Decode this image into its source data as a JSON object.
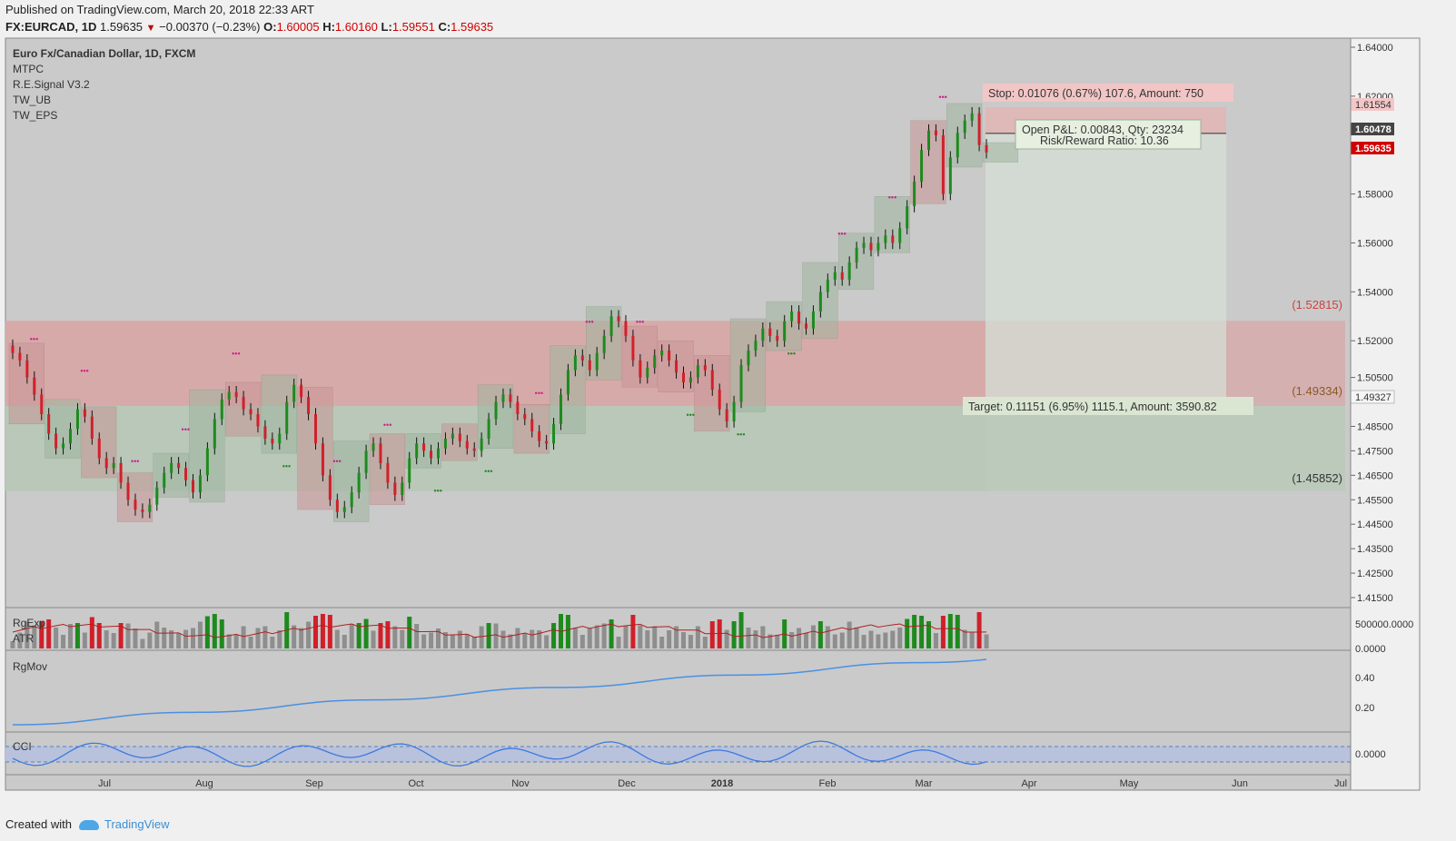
{
  "header": {
    "published": "Published on TradingView.com, March 20, 2018 22:33 ART",
    "symbol": "FX:EURCAD, 1D",
    "last": "1.59635",
    "change": "−0.00370 (−0.23%)",
    "open_label": "O:",
    "open": "1.60005",
    "high_label": "H:",
    "high": "1.60160",
    "low_label": "L:",
    "low": "1.59551",
    "close_label": "C:",
    "close": "1.59635"
  },
  "legend": {
    "title": "Euro Fx/Canadian Dollar, 1D, FXCM",
    "indicators": [
      "MTPC",
      "R.E.Signal V3.2",
      "TW_UB",
      "TW_EPS"
    ]
  },
  "boxes": {
    "stop": "Stop: 0.01076 (0.67%) 107.6, Amount: 750",
    "pnl_line1": "Open P&L: 0.00843, Qty: 23234",
    "pnl_line2": "Risk/Reward Ratio: 10.36",
    "target": "Target: 0.11151 (6.95%) 1115.1, Amount: 3590.82"
  },
  "zone_labels": {
    "upper": "(1.52815)",
    "middle": "(1.49334)",
    "lower": "(1.45852)"
  },
  "price_tags": {
    "a": "1.61554",
    "b": "1.60478",
    "c": "1.59635",
    "d": "1.49327"
  },
  "panes": {
    "rgexp": "RgExp",
    "atr": "ATR",
    "rgmov": "RgMov",
    "cci": "CCI"
  },
  "colors": {
    "up": "#1e8a1e",
    "down": "#d0202a",
    "stop_zone": "#e3a8a8",
    "target_zone": "#b7cbb7",
    "rgmov_line": "#4a90e2",
    "rgexp_line": "#b02020"
  },
  "chart_data": [
    {
      "type": "candlestick",
      "title": "Euro Fx/Canadian Dollar, 1D, FXCM",
      "x_ticks": [
        "Jul",
        "Aug",
        "Sep",
        "Oct",
        "Nov",
        "Dec",
        "2018",
        "Feb",
        "Mar",
        "Apr",
        "May",
        "Jun",
        "Jul"
      ],
      "y_ticks": [
        "1.64000",
        "1.62000",
        "1.60000",
        "1.58000",
        "1.56000",
        "1.54000",
        "1.52000",
        "1.50500",
        "1.48500",
        "1.47500",
        "1.46500",
        "1.45500",
        "1.44500",
        "1.43500",
        "1.42500",
        "1.41500"
      ],
      "close_series": [
        1.515,
        1.512,
        1.505,
        1.498,
        1.49,
        1.482,
        1.476,
        1.478,
        1.484,
        1.492,
        1.489,
        1.48,
        1.472,
        1.468,
        1.47,
        1.462,
        1.455,
        1.451,
        1.45,
        1.453,
        1.46,
        1.466,
        1.47,
        1.468,
        1.463,
        1.458,
        1.465,
        1.476,
        1.488,
        1.496,
        1.499,
        1.497,
        1.492,
        1.49,
        1.485,
        1.48,
        1.478,
        1.482,
        1.495,
        1.502,
        1.497,
        1.49,
        1.478,
        1.465,
        1.455,
        1.45,
        1.452,
        1.458,
        1.466,
        1.475,
        1.478,
        1.47,
        1.462,
        1.457,
        1.462,
        1.472,
        1.478,
        1.475,
        1.472,
        1.476,
        1.48,
        1.482,
        1.479,
        1.476,
        1.475,
        1.48,
        1.488,
        1.495,
        1.498,
        1.495,
        1.49,
        1.488,
        1.483,
        1.479,
        1.478,
        1.486,
        1.498,
        1.508,
        1.514,
        1.512,
        1.508,
        1.515,
        1.522,
        1.53,
        1.528,
        1.522,
        1.512,
        1.505,
        1.509,
        1.514,
        1.516,
        1.512,
        1.507,
        1.503,
        1.505,
        1.51,
        1.508,
        1.5,
        1.492,
        1.487,
        1.495,
        1.51,
        1.516,
        1.52,
        1.525,
        1.522,
        1.52,
        1.528,
        1.532,
        1.527,
        1.525,
        1.532,
        1.54,
        1.545,
        1.548,
        1.545,
        1.552,
        1.558,
        1.56,
        1.557,
        1.56,
        1.563,
        1.56,
        1.566,
        1.575,
        1.585,
        1.598,
        1.606,
        1.604,
        1.58,
        1.595,
        1.605,
        1.61,
        1.613,
        1.6,
        1.597
      ],
      "y_range": [
        1.41,
        1.645
      ],
      "support_resistance": [
        1.52815,
        1.49334,
        1.45852
      ],
      "stop_level": 1.61554,
      "entry_level": 1.60478,
      "target_level": 1.49327
    },
    {
      "type": "bar",
      "name": "RgExp / ATR",
      "y_ticks": [
        "500000.0000",
        "0.0000"
      ]
    },
    {
      "type": "line",
      "name": "RgMov",
      "y_ticks": [
        "0.40",
        "0.20"
      ],
      "y_range": [
        0.0,
        0.55
      ]
    },
    {
      "type": "line",
      "name": "CCI",
      "y_ticks": [
        "0.0000"
      ]
    }
  ]
}
